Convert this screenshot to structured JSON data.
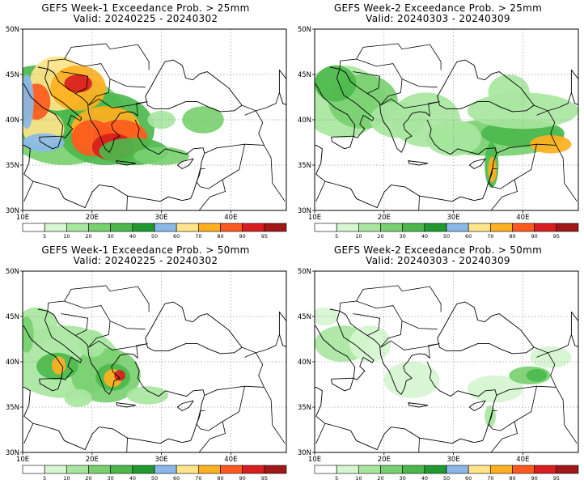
{
  "panels": [
    {
      "title": "GEFS Week-1 Exceedance Prob. > 25mm",
      "valid": "Valid: 20240225 - 20240302",
      "lat_labels": [
        "50N",
        "45N",
        "40N",
        "35N",
        "30N"
      ],
      "lon_labels": [
        "10E",
        "20E",
        "30E",
        "40E"
      ]
    },
    {
      "title": "GEFS Week-2 Exceedance Prob. > 25mm",
      "valid": "Valid: 20240303 - 20240309",
      "lat_labels": [
        "50N",
        "45N",
        "40N",
        "35N",
        "30N"
      ],
      "lon_labels": [
        "10E",
        "20E",
        "30E",
        "40E"
      ]
    },
    {
      "title": "GEFS Week-1 Exceedance Prob. > 50mm",
      "valid": "Valid: 20240225 - 20240302",
      "lat_labels": [
        "50N",
        "45N",
        "40N",
        "35N",
        "30N"
      ],
      "lon_labels": [
        "10E",
        "20E",
        "30E",
        "40E"
      ]
    },
    {
      "title": "GEFS Week-2 Exceedance Prob. > 50mm",
      "valid": "Valid: 20240303 - 20240309",
      "lat_labels": [
        "50N",
        "45N",
        "40N",
        "35N",
        "30N"
      ],
      "lon_labels": [
        "10E",
        "20E",
        "30E",
        "40E"
      ]
    }
  ],
  "colorbar": {
    "labels": [
      "5",
      "10",
      "20",
      "30",
      "40",
      "50",
      "60",
      "70",
      "80",
      "90",
      "95"
    ],
    "colors": [
      "#ffffff",
      "#d6f5d0",
      "#a8e6a0",
      "#78d070",
      "#4cb84c",
      "#1f9a2e",
      "#8ab8e8",
      "#ffe48a",
      "#ffb020",
      "#ff5a1e",
      "#d81e1e",
      "#a01818"
    ]
  },
  "colors": {
    "land_outline": "#000000",
    "grid": "#9a9a9a"
  }
}
